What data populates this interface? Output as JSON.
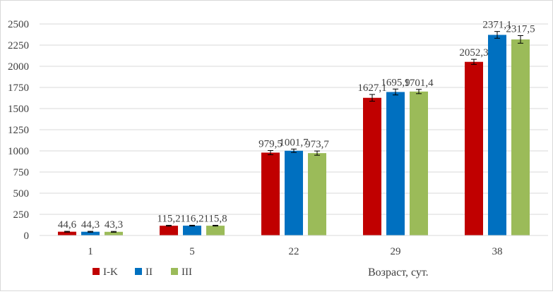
{
  "chart_data": {
    "type": "bar",
    "title": "",
    "xlabel": "Возраст, сут.",
    "ylabel": "",
    "ylim": [
      0,
      2500
    ],
    "yticks": [
      0,
      250,
      500,
      750,
      1000,
      1250,
      1500,
      1750,
      2000,
      2250,
      2500
    ],
    "ytick_labels": [
      "0",
      "250",
      "500",
      "750",
      "1000",
      "1250",
      "1500",
      "1750",
      "2000",
      "2250",
      "2500"
    ],
    "grid": true,
    "legend_position": "bottom-left",
    "categories": [
      "1",
      "5",
      "22",
      "29",
      "38"
    ],
    "series": [
      {
        "name": "I-K",
        "color": "#c00000",
        "values": [
          44.6,
          115.2,
          979.5,
          1627.1,
          2052.3
        ],
        "labels": [
          "44,6",
          "115,2",
          "979,5",
          "1627,1",
          "2052,3"
        ],
        "errors": [
          5,
          5,
          25,
          40,
          30
        ]
      },
      {
        "name": "II",
        "color": "#0070c0",
        "values": [
          44.3,
          116.2,
          1001.7,
          1695.9,
          2371.1
        ],
        "labels": [
          "44,3",
          "116,2",
          "1001,7",
          "1695,9",
          "2371,1"
        ],
        "errors": [
          5,
          5,
          20,
          35,
          40
        ]
      },
      {
        "name": "III",
        "color": "#9bbb59",
        "values": [
          43.3,
          115.8,
          973.7,
          1701.4,
          2317.5
        ],
        "labels": [
          "43,3",
          "115,8",
          "973,7",
          "1701,4",
          "2317,5"
        ],
        "errors": [
          5,
          5,
          25,
          25,
          45
        ]
      }
    ]
  }
}
